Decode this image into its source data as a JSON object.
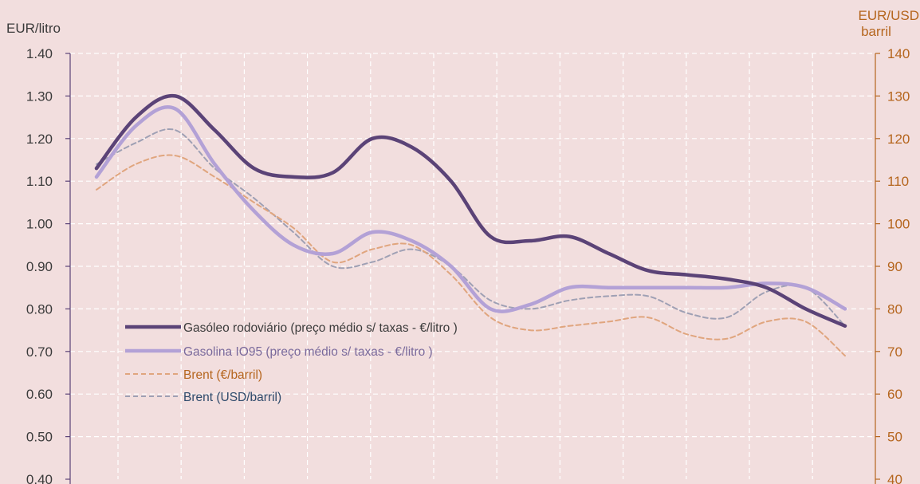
{
  "chart_data": {
    "type": "line",
    "title": "",
    "xlabel": "",
    "y_left": {
      "label": "EUR/litro",
      "ylim": [
        0.4,
        1.4
      ],
      "ticks": [
        "0.40",
        "0.50",
        "0.60",
        "0.70",
        "0.80",
        "0.90",
        "1.00",
        "1.10",
        "1.20",
        "1.30",
        "1.40"
      ],
      "color": "#3b3b3b"
    },
    "y_right": {
      "label_line1": "EUR/USD",
      "label_line2": "barril",
      "ylim": [
        40,
        140
      ],
      "ticks": [
        "40",
        "50",
        "60",
        "70",
        "80",
        "90",
        "100",
        "110",
        "120",
        "130",
        "140"
      ],
      "color": "#b5651d"
    },
    "x": [
      0,
      1,
      2,
      3,
      4,
      5,
      6,
      7,
      8,
      9,
      10,
      11,
      12,
      13,
      14,
      15,
      16,
      17,
      18,
      19
    ],
    "grid": true,
    "legend_position": "left",
    "series": [
      {
        "name": "Gasóleo rodoviário (preço médio s/ taxas - €/litro )",
        "axis": "left",
        "color": "#5b4377",
        "width": 4.5,
        "dash": "",
        "legend_text_color": "#3b3b3b",
        "values": [
          1.13,
          1.25,
          1.3,
          1.22,
          1.13,
          1.11,
          1.12,
          1.2,
          1.18,
          1.1,
          0.97,
          0.96,
          0.97,
          0.93,
          0.89,
          0.88,
          0.87,
          0.85,
          0.8,
          0.76
        ]
      },
      {
        "name": "Gasolina IO95 (preço médio s/ taxas - €/litro )",
        "axis": "left",
        "color": "#b3a1d6",
        "width": 4.5,
        "dash": "",
        "legend_text_color": "#7a6a9c",
        "values": [
          1.11,
          1.23,
          1.27,
          1.14,
          1.03,
          0.95,
          0.93,
          0.98,
          0.96,
          0.9,
          0.8,
          0.81,
          0.85,
          0.85,
          0.85,
          0.85,
          0.85,
          0.86,
          0.85,
          0.8
        ]
      },
      {
        "name": "Brent (€/barril)",
        "axis": "right",
        "color": "#e0a57e",
        "width": 2,
        "dash": "6,4",
        "legend_text_color": "#b5651d",
        "values": [
          108,
          114,
          116,
          111,
          105,
          99,
          91,
          94,
          95,
          88,
          78,
          75,
          76,
          77,
          78,
          74,
          73,
          77,
          77,
          69
        ]
      },
      {
        "name": "Brent (USD/barril)",
        "axis": "right",
        "color": "#9fa0b4",
        "width": 2,
        "dash": "6,4",
        "legend_text_color": "#2e4a6b",
        "values": [
          114,
          119,
          122,
          113,
          106,
          98,
          90,
          91,
          94,
          90,
          82,
          80,
          82,
          83,
          83,
          79,
          78,
          84,
          85,
          76
        ]
      }
    ]
  }
}
